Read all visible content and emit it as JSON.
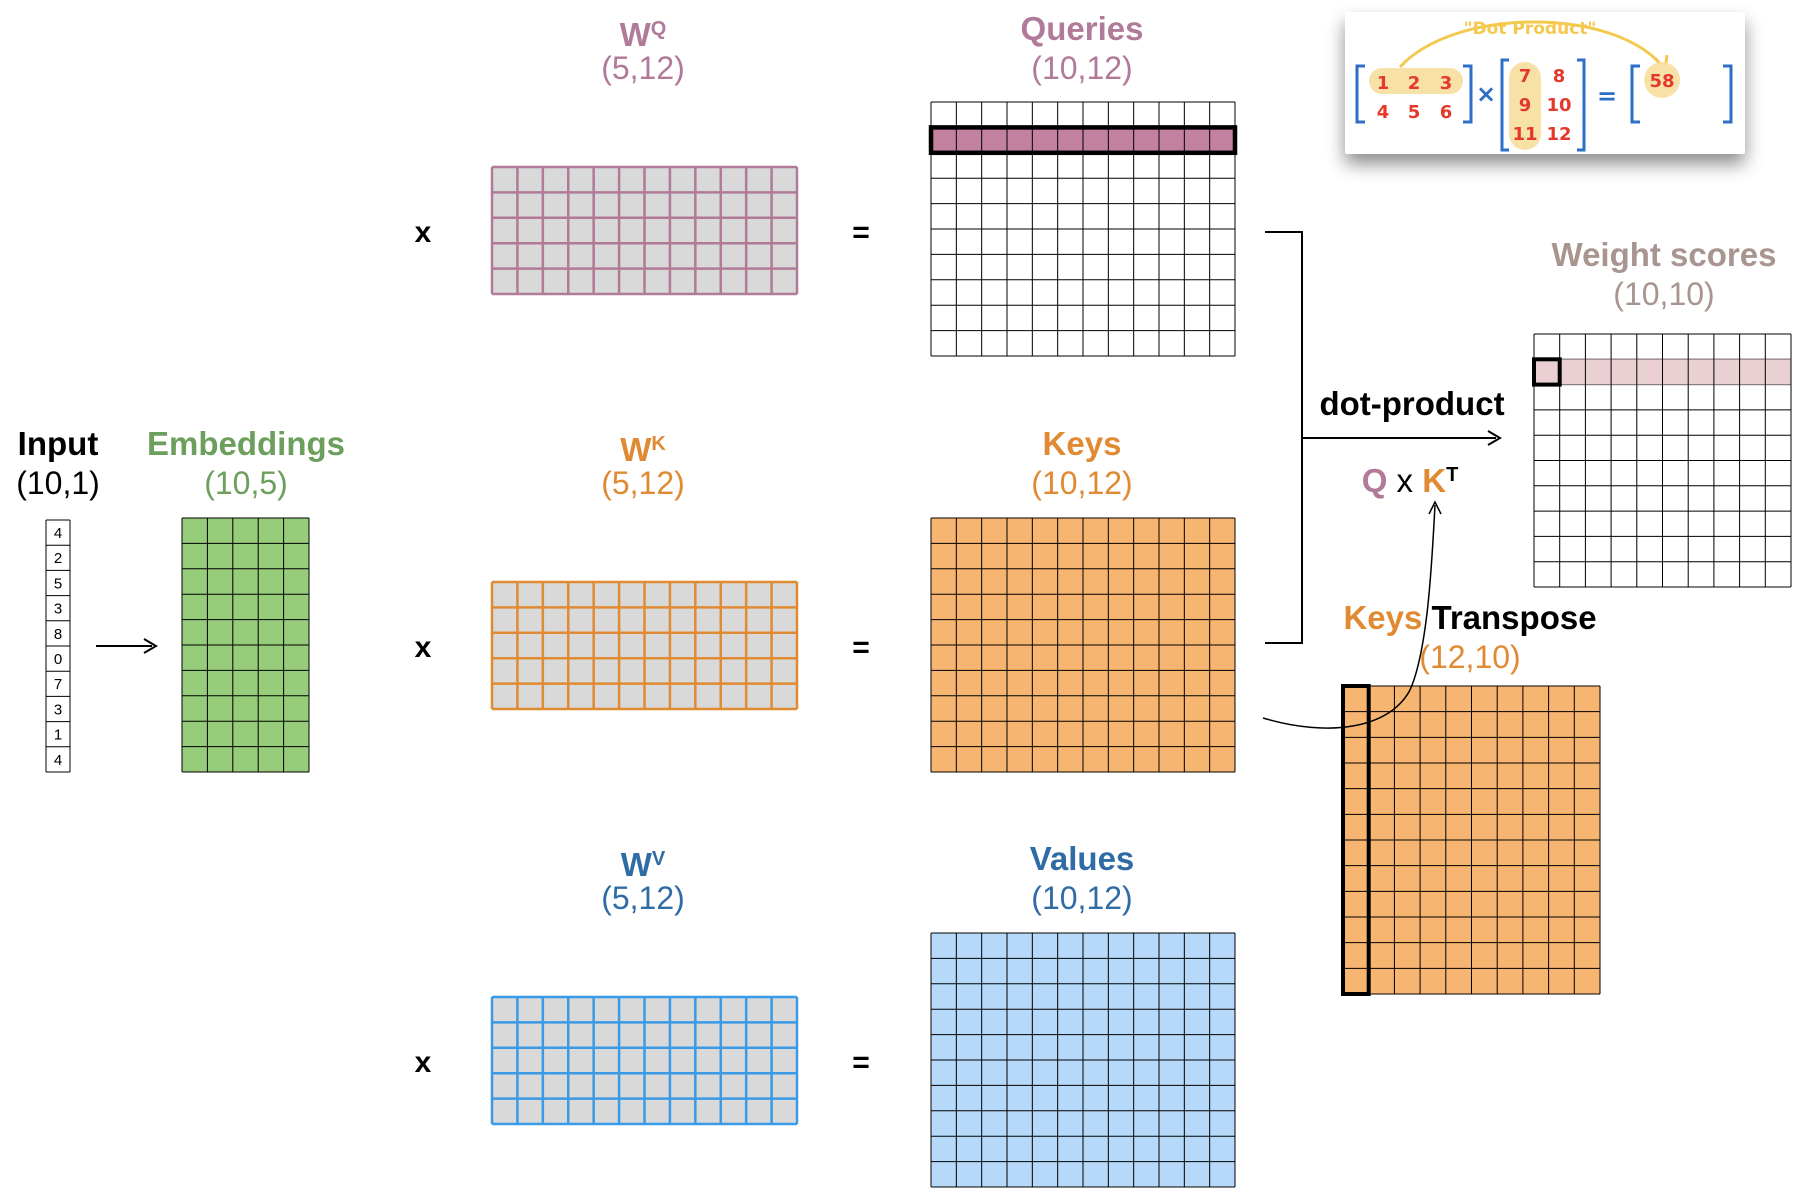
{
  "colors": {
    "query": "#b07a98",
    "query_fill": "#c1819f",
    "key": "#e08a33",
    "key_fill": "#f6b672",
    "value": "#2f6ca5",
    "value_fill": "#b6d8f9",
    "value_line": "#3a9ae6",
    "embed": "#6c9f5b",
    "embed_fill": "#96cc7a",
    "weight": "#a8958f",
    "weight_fill": "#ead0d2",
    "weight_grey": "#e0e0e0",
    "inset_red": "#e4392a",
    "inset_blue": "#2d6ec7",
    "inset_yellow": "#f3c94f"
  },
  "input": {
    "title": "Input",
    "dims": "(10,1)",
    "values": [
      "4",
      "2",
      "5",
      "3",
      "8",
      "0",
      "7",
      "3",
      "1",
      "4"
    ]
  },
  "embeddings": {
    "title": "Embeddings",
    "dims": "(10,5)"
  },
  "wq": {
    "title": "W",
    "sup": "Q",
    "dims": "(5,12)"
  },
  "wk": {
    "title": "W",
    "sup": "K",
    "dims": "(5,12)"
  },
  "wv": {
    "title": "W",
    "sup": "V",
    "dims": "(5,12)"
  },
  "queries": {
    "title": "Queries",
    "dims": "(10,12)"
  },
  "keys": {
    "title": "Keys",
    "dims": "(10,12)"
  },
  "values": {
    "title": "Values",
    "dims": "(10,12)"
  },
  "weight_scores": {
    "title": "Weight scores",
    "dims": "(10,10)"
  },
  "keys_transpose": {
    "title_a": "Keys",
    "title_b": " Transpose",
    "dims": "(12,10)"
  },
  "operators": {
    "times": "x",
    "equals": "="
  },
  "dot_product": {
    "label": "dot-product",
    "q": "Q",
    "x": " x ",
    "k": "K",
    "sup": "T"
  },
  "inset": {
    "caption": "\"Dot Product\"",
    "matrix_a": [
      [
        "1",
        "2",
        "3"
      ],
      [
        "4",
        "5",
        "6"
      ]
    ],
    "matrix_b": [
      [
        "7",
        "8"
      ],
      [
        "9",
        "10"
      ],
      [
        "11",
        "12"
      ]
    ],
    "times": "×",
    "equals": "=",
    "result": "58"
  }
}
